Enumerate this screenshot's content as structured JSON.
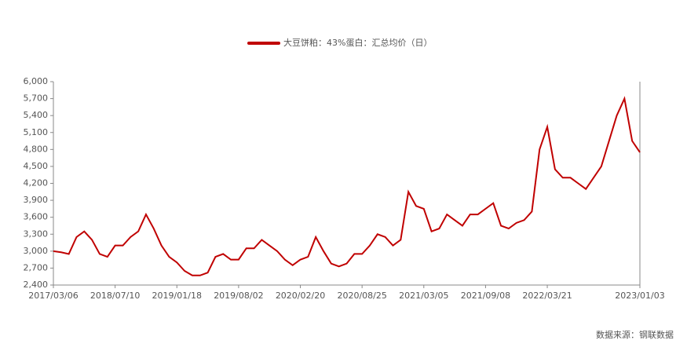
{
  "chart_data": {
    "type": "line",
    "series": [
      {
        "name": "大豆饼粕：43%蛋白：汇总均价（日）",
        "color": "#c00000",
        "values": [
          3000,
          2980,
          2950,
          3250,
          3350,
          3200,
          2950,
          2900,
          3100,
          3100,
          3250,
          3350,
          3650,
          3400,
          3100,
          2900,
          2800,
          2650,
          2570,
          2570,
          2620,
          2900,
          2950,
          2850,
          2850,
          3050,
          3050,
          3200,
          3100,
          3000,
          2850,
          2750,
          2850,
          2900,
          3250,
          3000,
          2780,
          2730,
          2780,
          2950,
          2950,
          3100,
          3300,
          3250,
          3100,
          3200,
          4050,
          3800,
          3750,
          3350,
          3400,
          3650,
          3550,
          3450,
          3650,
          3650,
          3750,
          3850,
          3450,
          3400,
          3500,
          3550,
          3700,
          4800,
          5200,
          4450,
          4300,
          4300,
          4200,
          4100,
          4300,
          4500,
          4950,
          5400,
          5700,
          4950,
          4750
        ]
      }
    ],
    "categories": [
      "2017/03/06",
      null,
      null,
      null,
      null,
      null,
      null,
      null,
      "2018/07/10",
      null,
      null,
      null,
      null,
      null,
      null,
      null,
      "2019/01/18",
      null,
      null,
      null,
      null,
      null,
      null,
      null,
      "2019/08/02",
      null,
      null,
      null,
      null,
      null,
      null,
      null,
      "2020/02/20",
      null,
      null,
      null,
      null,
      null,
      null,
      null,
      "2020/08/25",
      null,
      null,
      null,
      null,
      null,
      null,
      null,
      "2021/03/05",
      null,
      null,
      null,
      null,
      null,
      null,
      null,
      "2021/09/08",
      null,
      null,
      null,
      null,
      null,
      null,
      null,
      "2022/03/21",
      null,
      null,
      null,
      null,
      null,
      null,
      null,
      null,
      null,
      null,
      null,
      "2023/01/03"
    ],
    "ylim": [
      2400,
      6000
    ],
    "yticks": [
      {
        "value": 2400,
        "label": "2,400"
      },
      {
        "value": 2700,
        "label": "2,700"
      },
      {
        "value": 3000,
        "label": "3,000"
      },
      {
        "value": 3300,
        "label": "3,300"
      },
      {
        "value": 3600,
        "label": "3,600"
      },
      {
        "value": 3900,
        "label": "3,900"
      },
      {
        "value": 4200,
        "label": "4,200"
      },
      {
        "value": 4500,
        "label": "4,500"
      },
      {
        "value": 4800,
        "label": "4,800"
      },
      {
        "value": 5100,
        "label": "5,100"
      },
      {
        "value": 5400,
        "label": "5,400"
      },
      {
        "value": 5700,
        "label": "5,700"
      },
      {
        "value": 6000,
        "label": "6,000"
      }
    ],
    "source": "数据来源：钢联数据"
  }
}
